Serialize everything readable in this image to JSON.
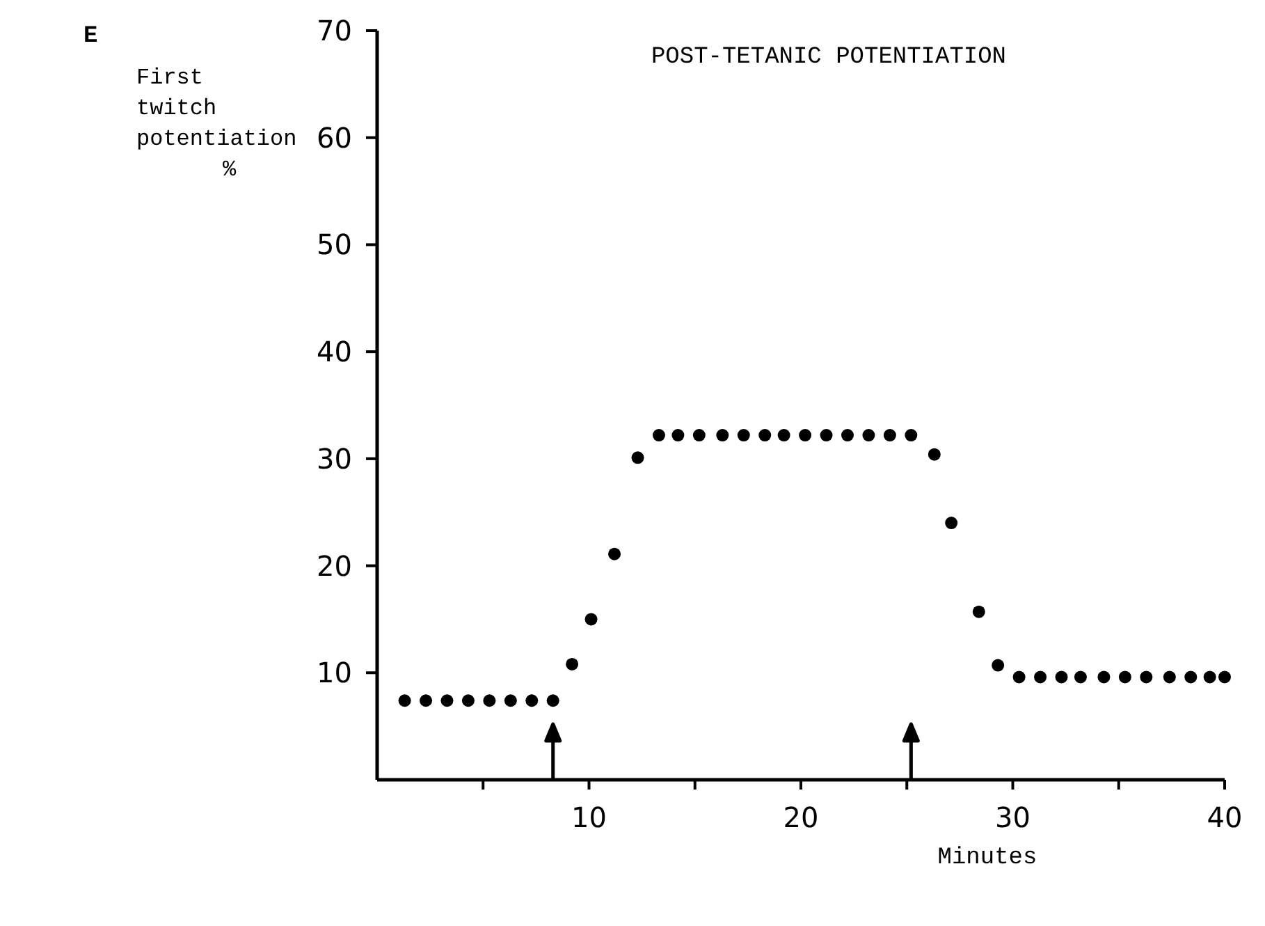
{
  "chart_data": {
    "type": "scatter",
    "title": "POST-TETANIC POTENTIATION",
    "xlabel": "Minutes",
    "ylabel": "First twitch potentiation %",
    "x": [
      1.3,
      2.3,
      3.3,
      4.3,
      5.3,
      6.3,
      7.3,
      8.3,
      9.2,
      10.1,
      11.2,
      12.3,
      13.3,
      14.2,
      15.2,
      16.3,
      17.3,
      18.3,
      19.2,
      20.2,
      21.2,
      22.2,
      23.2,
      24.2,
      25.2,
      26.3,
      27.1,
      28.4,
      29.3,
      30.3,
      31.3,
      32.3,
      33.2,
      34.3,
      35.3,
      36.3,
      37.4,
      38.4,
      39.3,
      40
    ],
    "series": [
      {
        "color": "#000000",
        "values": [
          7.4,
          7.4,
          7.4,
          7.4,
          7.4,
          7.4,
          7.4,
          7.4,
          10.8,
          15,
          21.1,
          30.1,
          32.2,
          32.2,
          32.2,
          32.2,
          32.2,
          32.2,
          32.2,
          32.2,
          32.2,
          32.2,
          32.2,
          32.2,
          32.2,
          30.4,
          24,
          15.7,
          10.7,
          9.6,
          9.6,
          9.6,
          9.6,
          9.6,
          9.6,
          9.6,
          9.6,
          9.6,
          9.6,
          9.6
        ]
      }
    ],
    "xlim": [
      0,
      40
    ],
    "ylim": [
      0,
      70
    ],
    "xticks": [
      {
        "value": 5,
        "label": null
      },
      10,
      {
        "value": 15,
        "label": null
      },
      20,
      {
        "value": 25,
        "label": null
      },
      30,
      {
        "value": 35,
        "label": null
      },
      40
    ],
    "yticks": [
      10,
      20,
      30,
      40,
      50,
      60,
      70
    ],
    "annotations": [
      "E"
    ],
    "marker": "circle",
    "grid": false
  }
}
